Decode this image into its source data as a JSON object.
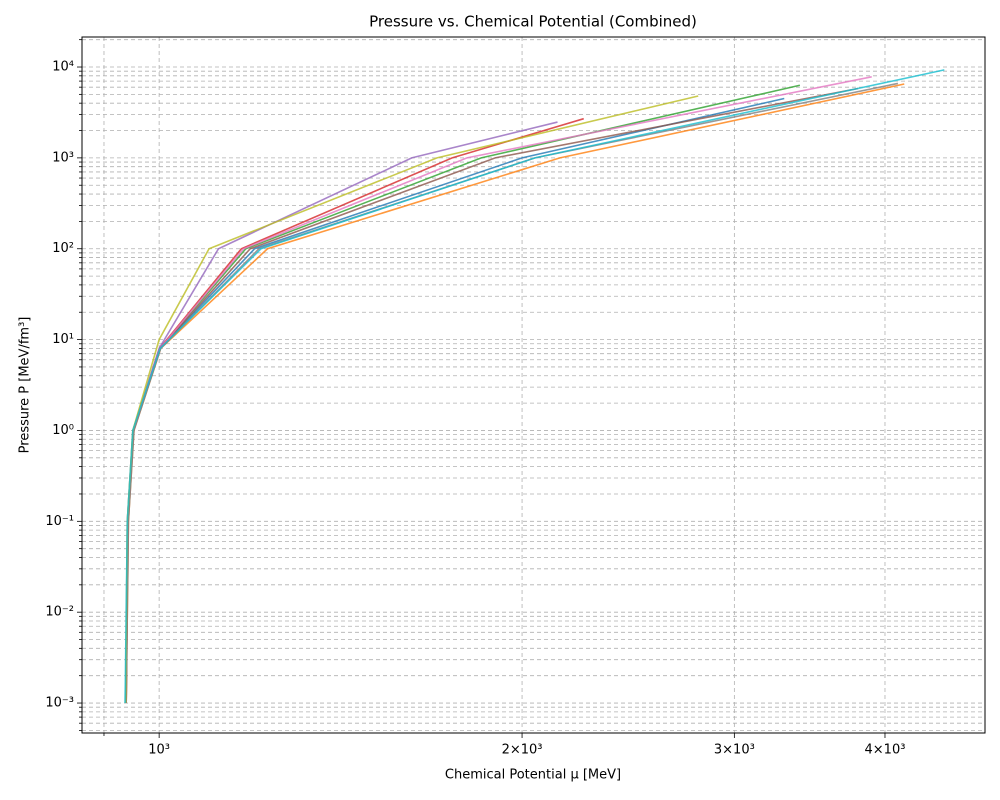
{
  "chart_data": {
    "type": "line",
    "title": "Pressure vs. Chemical Potential (Combined)",
    "x_label": "Chemical Potential μ [MeV]",
    "y_label": "Pressure P [MeV/fm³]",
    "xscale": "log",
    "yscale": "log",
    "grid": true,
    "xlim": [
      863,
      4842
    ],
    "ylim": [
      0.000468,
      21400
    ],
    "xticks": [
      {
        "value": 1000,
        "label": "10³"
      },
      {
        "value": 2000,
        "label": "2×10³"
      },
      {
        "value": 3000,
        "label": "3×10³"
      },
      {
        "value": 4000,
        "label": "4×10³"
      }
    ],
    "xminorticks": [
      900
    ],
    "yticks": [
      {
        "value": 0.001,
        "label": "10⁻³"
      },
      {
        "value": 0.01,
        "label": "10⁻²"
      },
      {
        "value": 0.1,
        "label": "10⁻¹"
      },
      {
        "value": 1,
        "label": "10⁰"
      },
      {
        "value": 10,
        "label": "10¹"
      },
      {
        "value": 100,
        "label": "10²"
      },
      {
        "value": 1000,
        "label": "10³"
      },
      {
        "value": 10000,
        "label": "10⁴"
      }
    ],
    "yminorticks": [
      0.0005,
      0.0006,
      0.0007,
      0.0008,
      0.0009,
      0.002,
      0.003,
      0.004,
      0.005,
      0.006,
      0.007,
      0.008,
      0.009,
      0.02,
      0.03,
      0.04,
      0.05,
      0.06,
      0.07,
      0.08,
      0.09,
      0.2,
      0.3,
      0.4,
      0.5,
      0.6,
      0.7,
      0.8,
      0.9,
      2,
      3,
      4,
      5,
      6,
      7,
      8,
      9,
      20,
      30,
      40,
      50,
      60,
      70,
      80,
      90,
      200,
      300,
      400,
      500,
      600,
      700,
      800,
      900,
      2000,
      3000,
      4000,
      5000,
      6000,
      7000,
      8000,
      9000,
      20000
    ],
    "series": [
      {
        "color": "#1f77b4",
        "x": [
          938,
          942,
          952,
          1002,
          1200,
          2000,
          3300
        ],
        "values": [
          0.001,
          0.1,
          1,
          8,
          100,
          1000,
          4500
        ]
      },
      {
        "color": "#ff7f0e",
        "x": [
          939,
          943,
          953,
          1003,
          1230,
          2150,
          4150
        ],
        "values": [
          0.001,
          0.1,
          1,
          8,
          100,
          1000,
          6500
        ]
      },
      {
        "color": "#2ca02c",
        "x": [
          938,
          942,
          952,
          1002,
          1180,
          1850,
          3400
        ],
        "values": [
          0.001,
          0.1,
          1,
          8,
          100,
          1000,
          6300
        ]
      },
      {
        "color": "#d62728",
        "x": [
          939,
          942,
          952,
          1001,
          1170,
          1750,
          2250
        ],
        "values": [
          0.001,
          0.1,
          1,
          8,
          100,
          1000,
          2700
        ]
      },
      {
        "color": "#9467bd",
        "x": [
          938,
          941,
          951,
          1000,
          1120,
          1620,
          2140
        ],
        "values": [
          0.001,
          0.1,
          1,
          8,
          100,
          1000,
          2480
        ]
      },
      {
        "color": "#8c564b",
        "x": [
          939,
          942,
          952,
          1002,
          1190,
          1900,
          3800
        ],
        "values": [
          0.001,
          0.1,
          1,
          8,
          100,
          1000,
          5800
        ]
      },
      {
        "color": "#e377c2",
        "x": [
          938,
          942,
          952,
          1002,
          1175,
          1800,
          3900
        ],
        "values": [
          0.001,
          0.1,
          1,
          8,
          100,
          1000,
          7800
        ]
      },
      {
        "color": "#7f7f7f",
        "x": [
          939,
          943,
          953,
          1003,
          1210,
          2050,
          4100
        ],
        "values": [
          0.001,
          0.1,
          1,
          8,
          100,
          1000,
          6600
        ]
      },
      {
        "color": "#bcbd22",
        "x": [
          938,
          941,
          951,
          1000,
          1100,
          1700,
          2800
        ],
        "values": [
          0.001,
          0.1,
          1,
          10,
          100,
          1000,
          4800
        ]
      },
      {
        "color": "#17becf",
        "x": [
          937,
          941,
          951,
          1002,
          1215,
          2050,
          4480
        ],
        "values": [
          0.001,
          0.1,
          1,
          8,
          100,
          1000,
          9300
        ]
      }
    ]
  }
}
